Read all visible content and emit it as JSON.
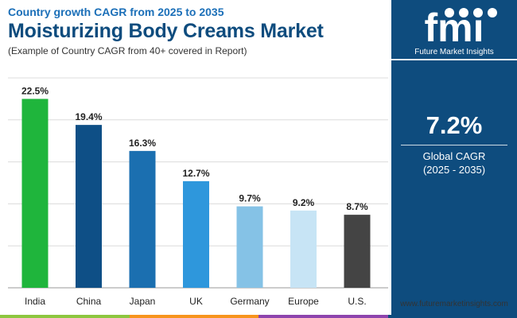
{
  "header": {
    "subtitle": "Country growth CAGR from 2025 to 2035",
    "title": "Moisturizing Body Creams Market",
    "note": "(Example of Country CAGR from 40+ covered in Report)"
  },
  "sidebar": {
    "brand": "Future Market Insights",
    "cagr_value": "7.2%",
    "cagr_label": "Global CAGR",
    "cagr_period": "(2025 - 2035)"
  },
  "footer": {
    "url": "www.futuremarketinsights.com",
    "strip_colors": [
      "#8dc63f",
      "#f7941d",
      "#8e44ad",
      "#0e4c7e"
    ]
  },
  "chart_data": {
    "type": "bar",
    "categories": [
      "India",
      "China",
      "Japan",
      "UK",
      "Germany",
      "Europe",
      "U.S."
    ],
    "values": [
      22.5,
      19.4,
      16.3,
      12.7,
      9.7,
      9.2,
      8.7
    ],
    "data_labels": [
      "22.5%",
      "19.4%",
      "16.3%",
      "12.7%",
      "9.7%",
      "9.2%",
      "8.7%"
    ],
    "colors": [
      "#1fb53c",
      "#0e4f86",
      "#1b6fb0",
      "#2e97dc",
      "#85c2e6",
      "#c7e4f5",
      "#444444"
    ],
    "ylim": [
      0,
      25
    ],
    "grid": true,
    "title": "",
    "xlabel": "",
    "ylabel": ""
  }
}
